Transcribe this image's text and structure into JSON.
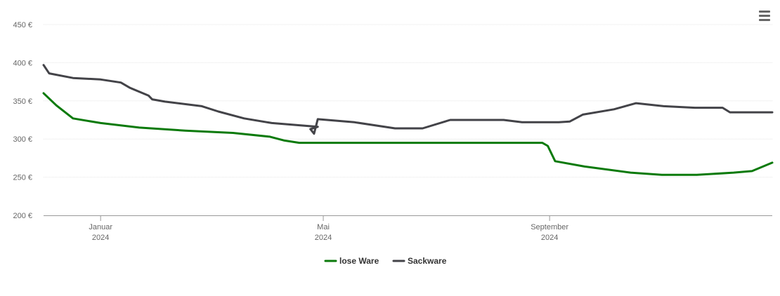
{
  "chart_data": {
    "type": "line",
    "title": "",
    "xlabel": "",
    "ylabel": "",
    "y_ticks": [
      "200 €",
      "250 €",
      "300 €",
      "350 €",
      "400 €",
      "450 €"
    ],
    "y_tick_values": [
      200,
      250,
      300,
      350,
      400,
      450
    ],
    "ylim": [
      200,
      450
    ],
    "x_ticks": [
      {
        "date": "2024-01-01",
        "month": "Januar",
        "year": "2024"
      },
      {
        "date": "2024-05-01",
        "month": "Mai",
        "year": "2024"
      },
      {
        "date": "2024-09-01",
        "month": "September",
        "year": "2024"
      }
    ],
    "xlim": [
      "2023-12-01",
      "2024-12-31"
    ],
    "grid": true,
    "legend_position": "bottom-center",
    "series": [
      {
        "name": "lose Ware",
        "color": "#0b7a0b",
        "points": [
          [
            "2023-12-01",
            360
          ],
          [
            "2023-12-08",
            344
          ],
          [
            "2023-12-17",
            327
          ],
          [
            "2024-01-01",
            321
          ],
          [
            "2024-01-22",
            315
          ],
          [
            "2024-02-16",
            311
          ],
          [
            "2024-03-13",
            308
          ],
          [
            "2024-04-02",
            303
          ],
          [
            "2024-04-10",
            298
          ],
          [
            "2024-04-18",
            295
          ],
          [
            "2024-05-15",
            295
          ],
          [
            "2024-06-15",
            295
          ],
          [
            "2024-07-15",
            295
          ],
          [
            "2024-08-15",
            295
          ],
          [
            "2024-08-28",
            295
          ],
          [
            "2024-08-31",
            291
          ],
          [
            "2024-09-04",
            271
          ],
          [
            "2024-09-20",
            264
          ],
          [
            "2024-10-15",
            256
          ],
          [
            "2024-11-01",
            253
          ],
          [
            "2024-11-20",
            253
          ],
          [
            "2024-12-10",
            256
          ],
          [
            "2024-12-20",
            258
          ],
          [
            "2024-12-31",
            269
          ]
        ]
      },
      {
        "name": "Sackware",
        "color": "#434348",
        "points": [
          [
            "2023-12-01",
            397
          ],
          [
            "2023-12-04",
            386
          ],
          [
            "2023-12-17",
            380
          ],
          [
            "2024-01-01",
            378
          ],
          [
            "2024-01-12",
            374
          ],
          [
            "2024-01-17",
            367
          ],
          [
            "2024-01-27",
            357
          ],
          [
            "2024-01-29",
            352
          ],
          [
            "2024-02-05",
            349
          ],
          [
            "2024-02-25",
            343
          ],
          [
            "2024-03-05",
            336
          ],
          [
            "2024-03-19",
            327
          ],
          [
            "2024-04-03",
            321
          ],
          [
            "2024-04-28",
            316
          ],
          [
            "2024-04-24",
            313
          ],
          [
            "2024-04-26",
            307
          ],
          [
            "2024-04-28",
            326
          ],
          [
            "2024-05-18",
            322
          ],
          [
            "2024-06-09",
            314
          ],
          [
            "2024-06-24",
            314
          ],
          [
            "2024-07-09",
            325
          ],
          [
            "2024-08-07",
            325
          ],
          [
            "2024-08-17",
            322
          ],
          [
            "2024-09-06",
            322
          ],
          [
            "2024-09-12",
            323
          ],
          [
            "2024-09-19",
            332
          ],
          [
            "2024-10-06",
            339
          ],
          [
            "2024-10-18",
            347
          ],
          [
            "2024-11-02",
            343
          ],
          [
            "2024-11-19",
            341
          ],
          [
            "2024-12-04",
            341
          ],
          [
            "2024-12-08",
            335
          ],
          [
            "2024-12-31",
            335
          ]
        ]
      }
    ]
  },
  "icons": {
    "menu": "hamburger-menu-icon"
  }
}
